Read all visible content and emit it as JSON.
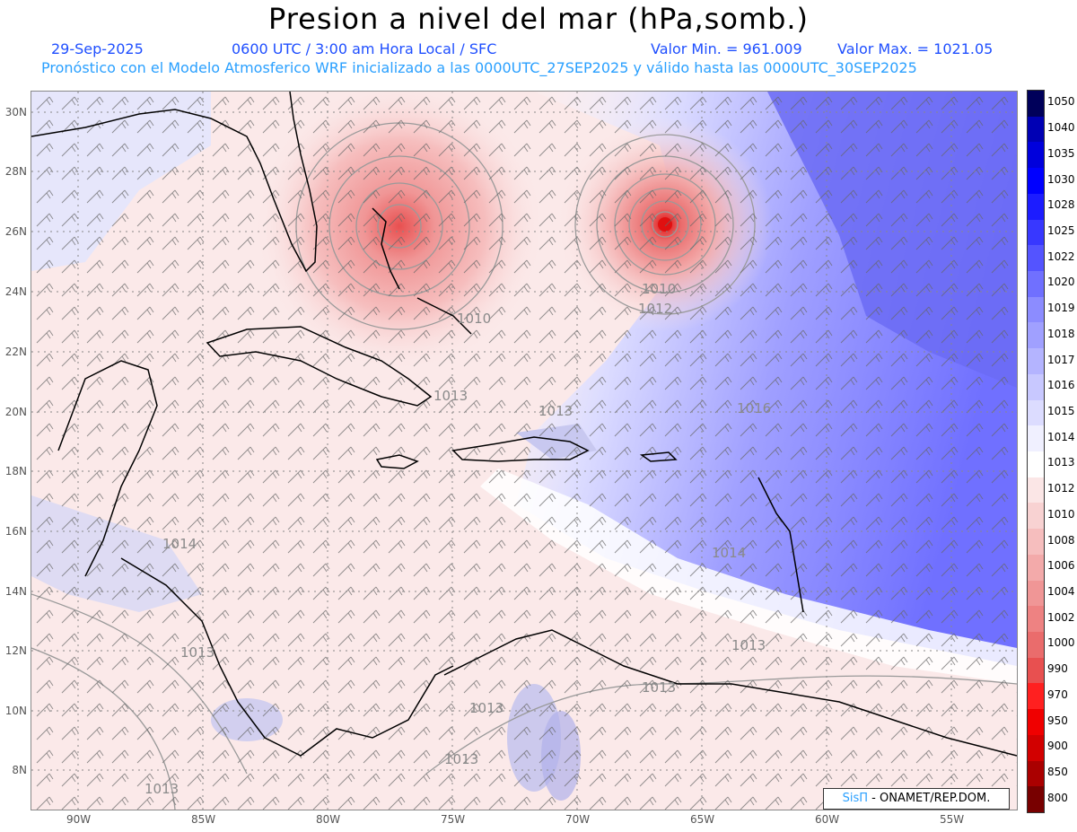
{
  "header": {
    "title": "Presion a nivel del mar (hPa,somb.)",
    "date": "29-Sep-2025",
    "time": "0600 UTC / 3:00 am Hora Local / SFC",
    "min_label": "Valor Min. = 961.009",
    "max_label": "Valor Max. = 1021.05",
    "model_line": "Pronóstico con el Modelo Atmosferico WRF inicializado a las 0000UTC_27SEP2025 y válido hasta las  0000UTC_30SEP2025"
  },
  "colorbar": {
    "levels": [
      "1050",
      "1040",
      "1035",
      "1030",
      "1028",
      "1025",
      "1022",
      "1020",
      "1019",
      "1018",
      "1017",
      "1016",
      "1015",
      "1014",
      "1013",
      "1012",
      "1010",
      "1008",
      "1006",
      "1004",
      "1002",
      "1000",
      "990",
      "970",
      "950",
      "900",
      "850",
      "800"
    ],
    "colors": [
      "#00005a",
      "#0000b4",
      "#0000dc",
      "#0000ff",
      "#1c1cff",
      "#3838ff",
      "#5454ff",
      "#7070ff",
      "#8c8cff",
      "#a0a0ff",
      "#b4b4ff",
      "#c8c8ff",
      "#dcdcff",
      "#f0f0ff",
      "#ffffff",
      "#fbe6e6",
      "#f8d2d2",
      "#f6bebe",
      "#f3aaaa",
      "#f09696",
      "#ee8282",
      "#ea6c6c",
      "#e85050",
      "#ff2020",
      "#f00000",
      "#d20000",
      "#aa0000",
      "#780000"
    ]
  },
  "axes": {
    "lat_labels": [
      "30N",
      "28N",
      "26N",
      "24N",
      "22N",
      "20N",
      "18N",
      "16N",
      "14N",
      "12N",
      "10N",
      "8N"
    ],
    "lon_labels": [
      "90W",
      "85W",
      "80W",
      "75W",
      "70W",
      "65W",
      "60W",
      "55W"
    ]
  },
  "contour_labels": [
    "1010",
    "1012",
    "1010",
    "1013",
    "1013",
    "1016",
    "1014",
    "1014",
    "1013",
    "1013",
    "1013",
    "1013",
    "1013",
    "1013"
  ],
  "credit": {
    "brand": "SisΠ",
    "text": " - ONAMET/REP.DOM."
  }
}
